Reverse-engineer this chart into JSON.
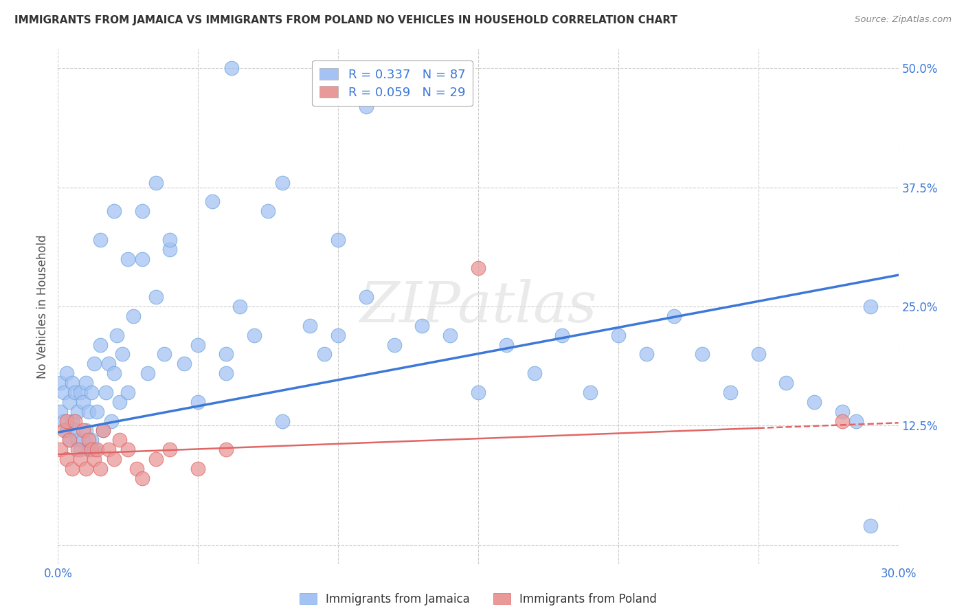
{
  "title": "IMMIGRANTS FROM JAMAICA VS IMMIGRANTS FROM POLAND NO VEHICLES IN HOUSEHOLD CORRELATION CHART",
  "source": "Source: ZipAtlas.com",
  "ylabel": "No Vehicles in Household",
  "x_min": 0.0,
  "x_max": 0.3,
  "y_min": -0.02,
  "y_max": 0.52,
  "x_ticks": [
    0.0,
    0.05,
    0.1,
    0.15,
    0.2,
    0.25,
    0.3
  ],
  "x_tick_labels": [
    "0.0%",
    "",
    "",
    "",
    "",
    "",
    "30.0%"
  ],
  "y_ticks": [
    0.0,
    0.125,
    0.25,
    0.375,
    0.5
  ],
  "y_tick_labels": [
    "",
    "12.5%",
    "25.0%",
    "37.5%",
    "50.0%"
  ],
  "jamaica_R": 0.337,
  "jamaica_N": 87,
  "poland_R": 0.059,
  "poland_N": 29,
  "jamaica_color": "#a4c2f4",
  "poland_color": "#ea9999",
  "jamaica_line_color": "#3c78d8",
  "poland_line_color": "#e06666",
  "grid_color": "#cccccc",
  "background_color": "#ffffff",
  "watermark": "ZIPatlas",
  "legend_labels": [
    "Immigrants from Jamaica",
    "Immigrants from Poland"
  ],
  "jamaica_x": [
    0.001,
    0.001,
    0.002,
    0.002,
    0.003,
    0.003,
    0.004,
    0.004,
    0.005,
    0.005,
    0.006,
    0.006,
    0.007,
    0.007,
    0.008,
    0.008,
    0.009,
    0.009,
    0.01,
    0.01,
    0.011,
    0.011,
    0.012,
    0.012,
    0.013,
    0.013,
    0.014,
    0.015,
    0.016,
    0.017,
    0.018,
    0.019,
    0.02,
    0.021,
    0.022,
    0.023,
    0.025,
    0.027,
    0.03,
    0.032,
    0.035,
    0.038,
    0.04,
    0.045,
    0.05,
    0.055,
    0.06,
    0.065,
    0.07,
    0.075,
    0.08,
    0.09,
    0.095,
    0.1,
    0.11,
    0.12,
    0.13,
    0.14,
    0.15,
    0.16,
    0.17,
    0.18,
    0.19,
    0.2,
    0.21,
    0.22,
    0.23,
    0.24,
    0.25,
    0.26,
    0.27,
    0.28,
    0.285,
    0.29,
    0.062,
    0.11,
    0.015,
    0.02,
    0.025,
    0.03,
    0.035,
    0.04,
    0.05,
    0.06,
    0.08,
    0.1,
    0.29
  ],
  "jamaica_y": [
    0.14,
    0.17,
    0.13,
    0.16,
    0.12,
    0.18,
    0.11,
    0.15,
    0.13,
    0.17,
    0.12,
    0.16,
    0.11,
    0.14,
    0.1,
    0.16,
    0.11,
    0.15,
    0.12,
    0.17,
    0.1,
    0.14,
    0.11,
    0.16,
    0.1,
    0.19,
    0.14,
    0.21,
    0.12,
    0.16,
    0.19,
    0.13,
    0.18,
    0.22,
    0.15,
    0.2,
    0.16,
    0.24,
    0.3,
    0.18,
    0.26,
    0.2,
    0.31,
    0.19,
    0.21,
    0.36,
    0.2,
    0.25,
    0.22,
    0.35,
    0.38,
    0.23,
    0.2,
    0.22,
    0.26,
    0.21,
    0.23,
    0.22,
    0.16,
    0.21,
    0.18,
    0.22,
    0.16,
    0.22,
    0.2,
    0.24,
    0.2,
    0.16,
    0.2,
    0.17,
    0.15,
    0.14,
    0.13,
    0.02,
    0.5,
    0.46,
    0.32,
    0.35,
    0.3,
    0.35,
    0.38,
    0.32,
    0.15,
    0.18,
    0.13,
    0.32,
    0.25
  ],
  "poland_x": [
    0.001,
    0.002,
    0.003,
    0.003,
    0.004,
    0.005,
    0.006,
    0.007,
    0.008,
    0.009,
    0.01,
    0.011,
    0.012,
    0.013,
    0.014,
    0.015,
    0.016,
    0.018,
    0.02,
    0.022,
    0.025,
    0.028,
    0.03,
    0.035,
    0.04,
    0.05,
    0.06,
    0.15,
    0.28
  ],
  "poland_y": [
    0.1,
    0.12,
    0.09,
    0.13,
    0.11,
    0.08,
    0.13,
    0.1,
    0.09,
    0.12,
    0.08,
    0.11,
    0.1,
    0.09,
    0.1,
    0.08,
    0.12,
    0.1,
    0.09,
    0.11,
    0.1,
    0.08,
    0.07,
    0.09,
    0.1,
    0.08,
    0.1,
    0.29,
    0.13
  ],
  "jamaica_line_x0": 0.0,
  "jamaica_line_y0": 0.118,
  "jamaica_line_x1": 0.3,
  "jamaica_line_y1": 0.283,
  "poland_line_x0": 0.0,
  "poland_line_y0": 0.095,
  "poland_line_x1": 0.3,
  "poland_line_y1": 0.128
}
